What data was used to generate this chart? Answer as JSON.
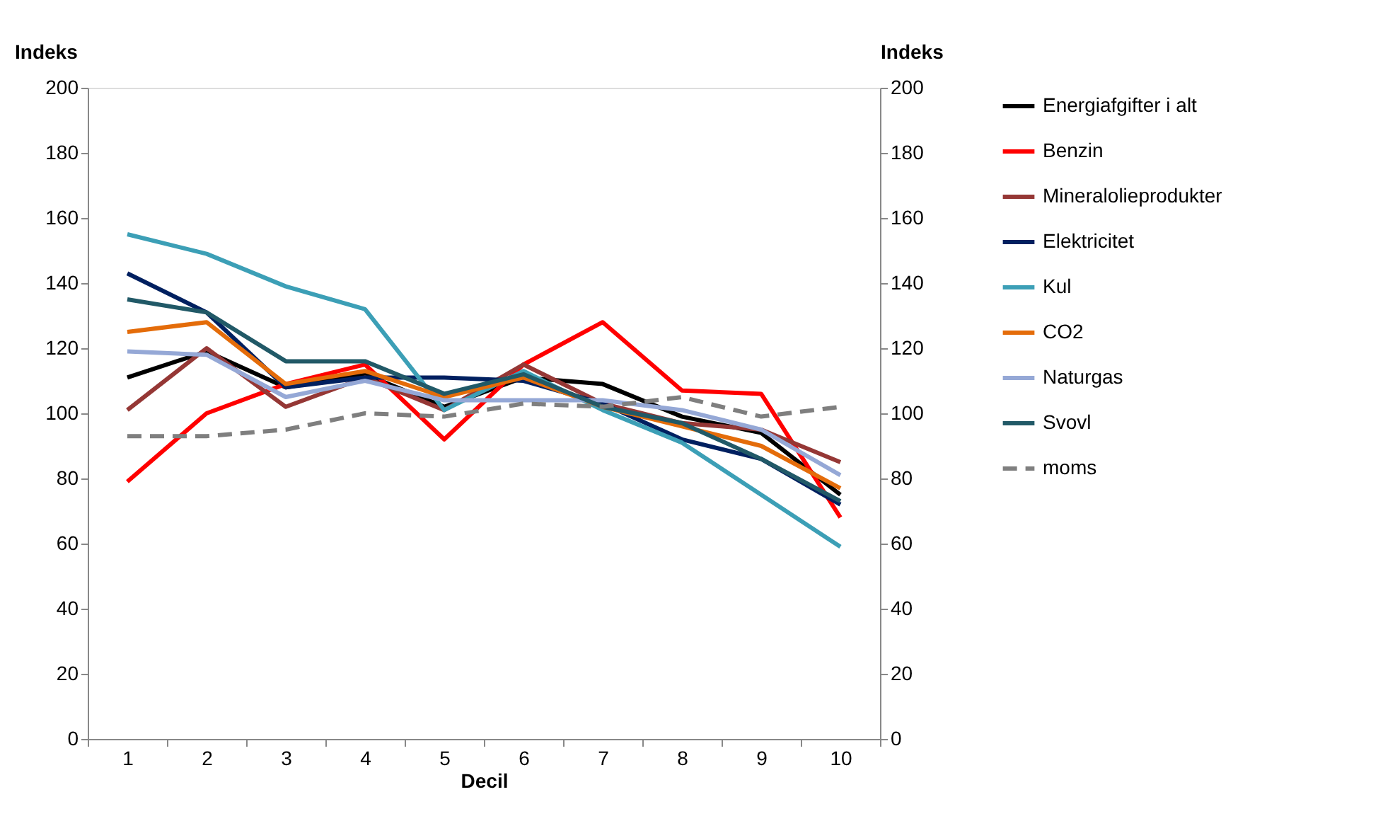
{
  "chart_data": {
    "type": "line",
    "xlabel": "Decil",
    "ylabel": "Indeks",
    "y2label": "Indeks",
    "categories": [
      "1",
      "2",
      "3",
      "4",
      "5",
      "6",
      "7",
      "8",
      "9",
      "10"
    ],
    "ylim": [
      0,
      200
    ],
    "yticks": [
      0,
      20,
      40,
      60,
      80,
      100,
      120,
      140,
      160,
      180,
      200
    ],
    "y2lim": [
      0,
      200
    ],
    "y2ticks": [
      0,
      20,
      40,
      60,
      80,
      100,
      120,
      140,
      160,
      180,
      200
    ],
    "grid": false,
    "legend": "right",
    "marker": "none",
    "line_style": "solid",
    "series": [
      {
        "name": "Energiafgifter i alt",
        "color": "#000000",
        "values": [
          111,
          119,
          108,
          112,
          102,
          111,
          109,
          99,
          94,
          75
        ]
      },
      {
        "name": "Benzin",
        "color": "#ff0000",
        "values": [
          79,
          100,
          109,
          115,
          92,
          115,
          128,
          107,
          106,
          68
        ]
      },
      {
        "name": "Mineralolieprodukter",
        "color": "#953735",
        "values": [
          101,
          120,
          102,
          111,
          101,
          115,
          103,
          97,
          95,
          85
        ]
      },
      {
        "name": "Elektricitet",
        "color": "#002060",
        "values": [
          143,
          131,
          108,
          111,
          111,
          110,
          103,
          92,
          86,
          72
        ]
      },
      {
        "name": "Kul",
        "color": "#3c9fb6",
        "values": [
          155,
          149,
          139,
          132,
          101,
          113,
          101,
          91,
          75,
          59
        ]
      },
      {
        "name": "CO2",
        "color": "#e46c0a",
        "values": [
          125,
          128,
          109,
          113,
          105,
          111,
          102,
          96,
          90,
          77
        ]
      },
      {
        "name": "Naturgas",
        "color": "#95a8d6",
        "values": [
          119,
          118,
          105,
          110,
          104,
          104,
          104,
          101,
          95,
          81
        ]
      },
      {
        "name": "Svovl",
        "color": "#215967",
        "values": [
          135,
          131,
          116,
          116,
          106,
          112,
          102,
          97,
          86,
          73
        ]
      },
      {
        "name": "moms",
        "color": "#7f7f7f",
        "line_style": "dashed",
        "values": [
          93,
          93,
          95,
          100,
          99,
          103,
          102,
          105,
          99,
          102
        ]
      }
    ]
  }
}
